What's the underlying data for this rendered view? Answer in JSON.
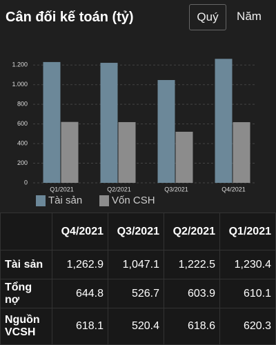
{
  "header": {
    "title": "Cân đối kế toán (tỷ)",
    "tabs": [
      "Quý",
      "Năm"
    ]
  },
  "chart_data": {
    "type": "bar",
    "categories": [
      "Q1/2021",
      "Q2/2021",
      "Q3/2021",
      "Q4/2021"
    ],
    "series": [
      {
        "name": "Tài sản",
        "color": "#6c8899",
        "values": [
          1230.4,
          1222.5,
          1047.1,
          1262.9
        ]
      },
      {
        "name": "Vốn CSH",
        "color": "#8c8c8c",
        "values": [
          620.3,
          618.6,
          520.4,
          618.1
        ]
      }
    ],
    "ylim": [
      0,
      1300
    ],
    "yticks": [
      0,
      200,
      400,
      600,
      800,
      {
        "value": 1000,
        "label": "1.000"
      },
      {
        "value": 1200,
        "label": "1.200"
      }
    ],
    "grid": true,
    "legend": "bottom"
  },
  "table": {
    "columns": [
      "Q4/2021",
      "Q3/2021",
      "Q2/2021",
      "Q1/2021"
    ],
    "rows": [
      {
        "label": "Tài sản",
        "values": [
          "1,262.9",
          "1,047.1",
          "1,222.5",
          "1,230.4"
        ]
      },
      {
        "label": "Tổng nợ",
        "values": [
          "644.8",
          "526.7",
          "603.9",
          "610.1"
        ]
      },
      {
        "label": "Nguồn VCSH",
        "values": [
          "618.1",
          "520.4",
          "618.6",
          "620.3"
        ]
      }
    ]
  }
}
